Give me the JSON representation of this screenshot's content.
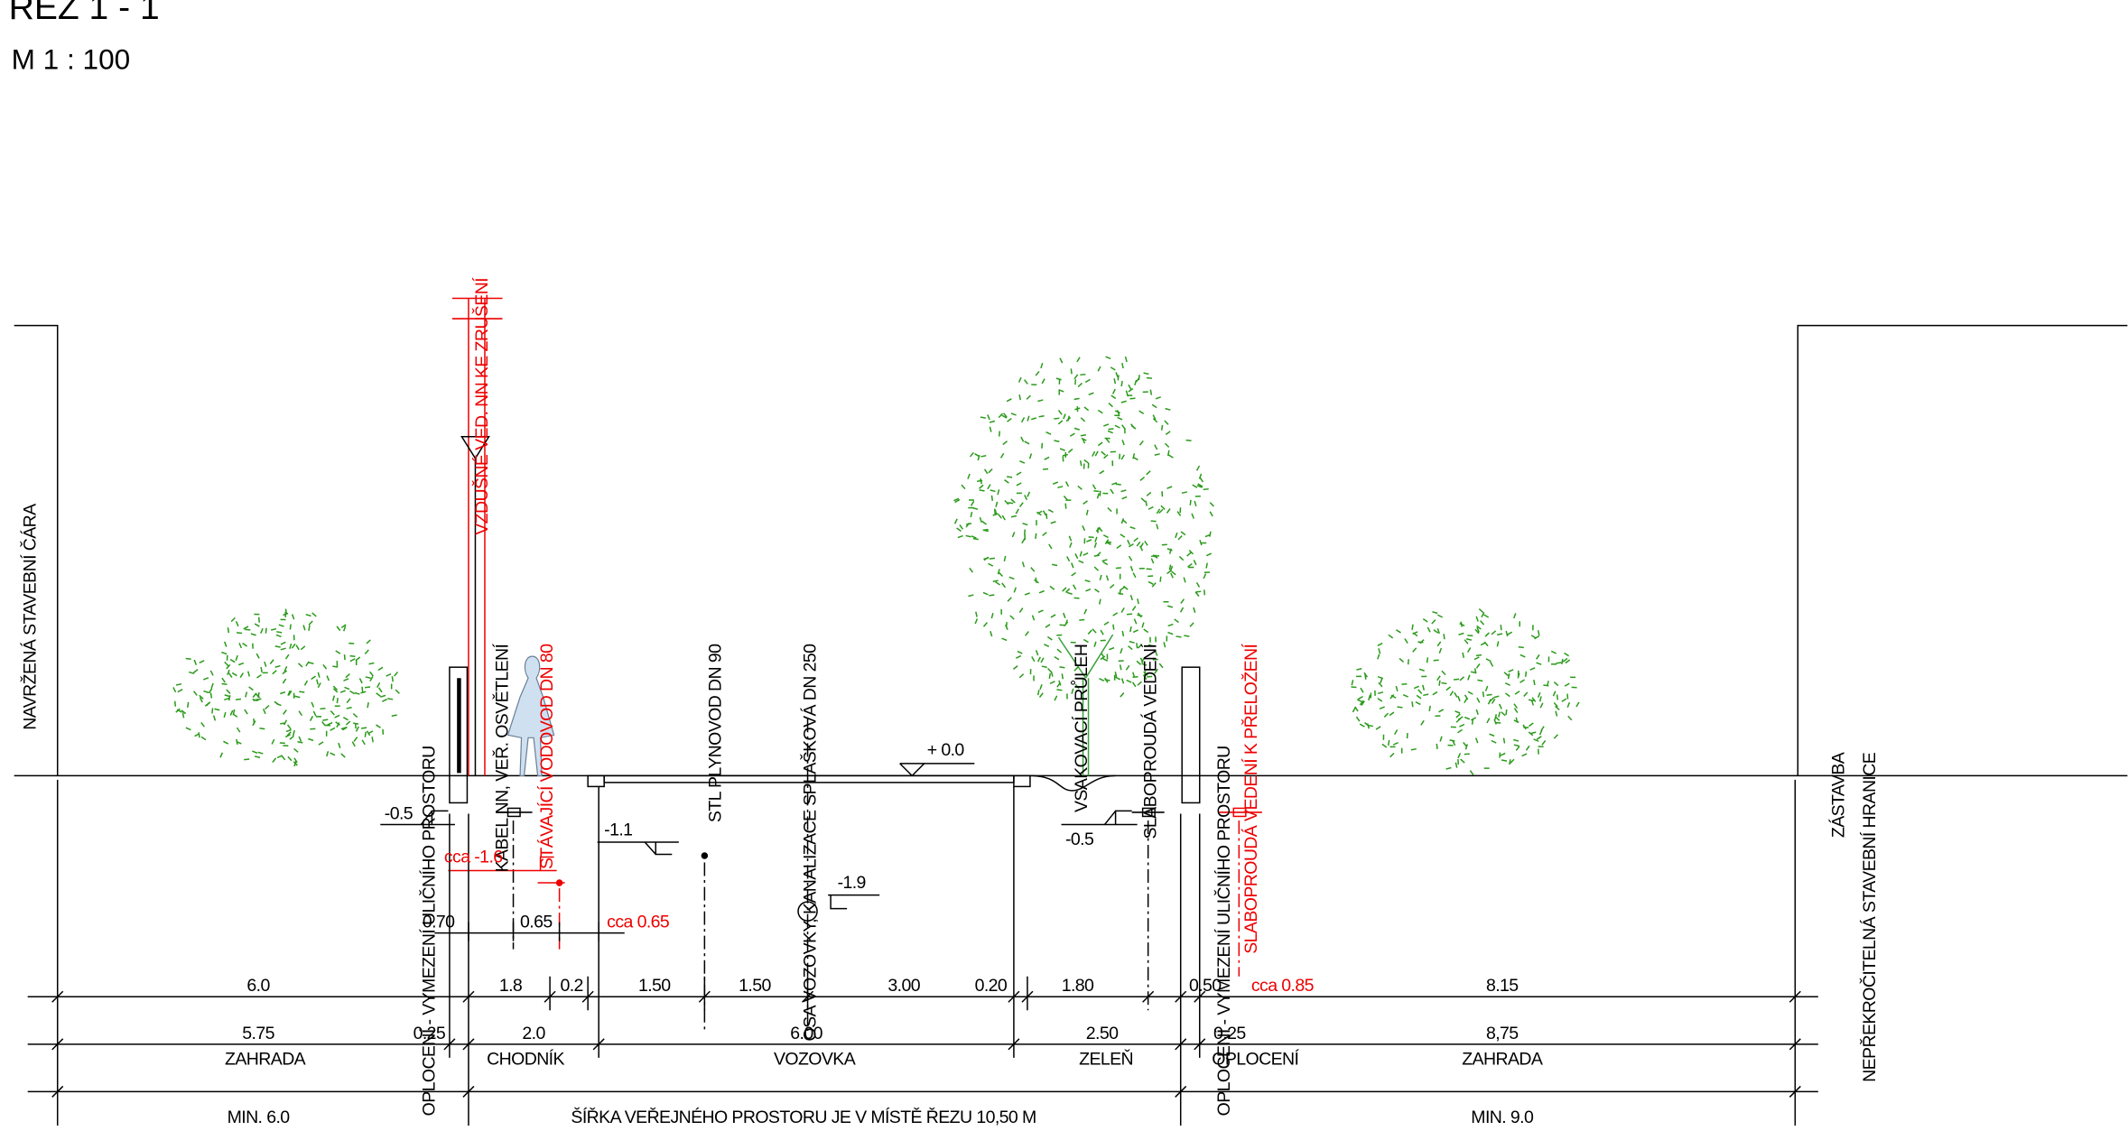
{
  "header": {
    "title": "ŘEZ 1 - 1",
    "scale": "M 1 : 100"
  },
  "labels": [
    "NAVRŽENÁ STAVEBNÍ ČÁRA",
    "OPLOCENÍ - VYMEZENÍ ULIČNÍHO PROSTORU",
    "VZDUŠNÉ VED. NN KE ZRUŠENÍ",
    "KABEL NN, VEŘ. OSVĚTLENÍ",
    "STÁVAJÍCÍ VODOVOD DN 80",
    "STL PLYNOVOD DN 90",
    "OSA VOZOVKY, KANALIZACE SPLAŠKOVÁ DN 250",
    "VSAKOVACÍ PRŮLEH",
    "SLABOPROUDÁ VEDENÍ",
    "OPLOCENÍ - VYMEZENÍ ULIČNÍHO PROSTORU",
    "SLABOPROUDÁ VEDENÍ K PŘELOŽENÍ",
    "ZÁSTAVBA",
    "NEPŘEKROČITELNÁ STAVEBNÍ HRANICE"
  ],
  "levels": [
    "+ 0.0",
    "-0.5",
    "cca -1.6",
    "-1.1",
    "-1.9",
    "-0.5",
    "0.70",
    "0.65",
    "cca 0.65"
  ],
  "dimensions": {
    "row1": [
      "6.0",
      "1.8",
      "0.2",
      "1.50",
      "1.50",
      "3.00",
      "0.20",
      "1.80",
      "0.50",
      "cca 0.85",
      "8.15"
    ],
    "row2": [
      "5.75",
      "0.25",
      "2.0",
      "6.00",
      "2.50",
      "0.25",
      "8,75"
    ],
    "zones": [
      "ZAHRADA",
      "CHODNÍK",
      "VOZOVKA",
      "ZELEŇ",
      "OPLOCENÍ",
      "ZAHRADA"
    ],
    "row3": [
      "MIN. 6.0",
      "ŠÍŘKA VEŘEJNÉHO PROSTORU JE V MÍSTĚ ŘEZU 10,50 M",
      "MIN. 9.0"
    ]
  }
}
